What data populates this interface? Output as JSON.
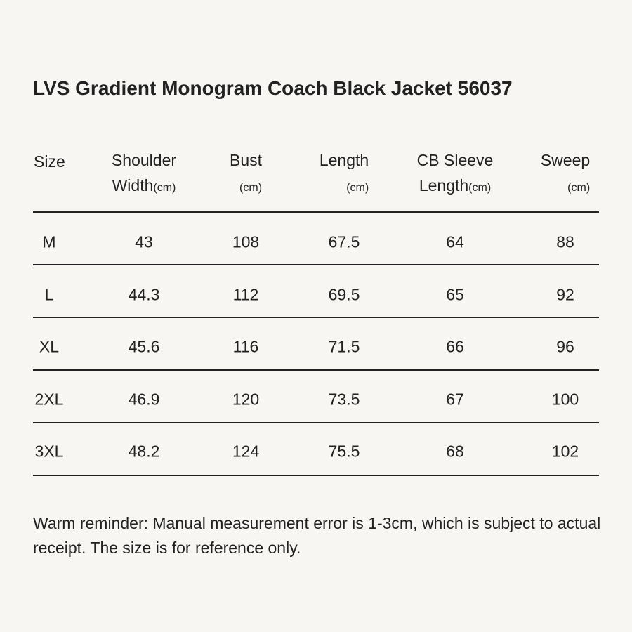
{
  "title": "LVS Gradient Monogram Coach Black Jacket 56037",
  "table": {
    "headers": [
      {
        "lines": [
          "Size"
        ]
      },
      {
        "lines": [
          "Shoulder",
          "Width"
        ],
        "unit": "(cm)"
      },
      {
        "lines": [
          "Bust"
        ],
        "unit": "(cm)"
      },
      {
        "lines": [
          "Length"
        ],
        "unit": "(cm)"
      },
      {
        "lines": [
          "CB Sleeve",
          "Length"
        ],
        "unit": "(cm)"
      },
      {
        "lines": [
          "Sweep"
        ],
        "unit": "(cm)"
      }
    ],
    "rows": [
      [
        "M",
        43,
        108,
        67.5,
        64,
        88
      ],
      [
        "L",
        44.3,
        112,
        69.5,
        65,
        92
      ],
      [
        "XL",
        45.6,
        116,
        71.5,
        66,
        96
      ],
      [
        "2XL",
        46.9,
        120,
        73.5,
        67,
        100
      ],
      [
        "3XL",
        48.2,
        124,
        75.5,
        68,
        102
      ]
    ]
  },
  "note": "Warm reminder: Manual measurement error is 1-3cm, which is subject to actual receipt. The size is for reference only."
}
